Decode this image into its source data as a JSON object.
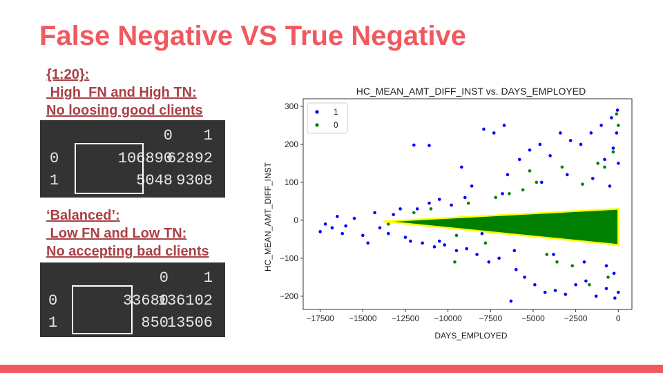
{
  "slide": {
    "title": "False Negative VS True Negative",
    "accent_color": "#f0595f",
    "note_color": "#a94045"
  },
  "matrix1": {
    "caption_lines": [
      "{1:20}:",
      " High  FN and High TN:",
      "No loosing good clients"
    ],
    "col_headers": [
      "0",
      "1"
    ],
    "rows": [
      {
        "label": "0",
        "values": [
          "106890",
          "62892"
        ]
      },
      {
        "label": "1",
        "values": [
          "5048",
          "9308"
        ]
      }
    ]
  },
  "matrix2": {
    "caption_lines": [
      "‘Balanced’:",
      " Low FN and Low TN:",
      "No accepting bad clients"
    ],
    "col_headers": [
      "0",
      "1"
    ],
    "rows": [
      {
        "label": "0",
        "values": [
          "33680",
          "136102"
        ]
      },
      {
        "label": "1",
        "values": [
          "850",
          "13506"
        ]
      }
    ]
  },
  "chart_data": {
    "type": "scatter",
    "title": "HC_MEAN_AMT_DIFF_INST vs. DAYS_EMPLOYED",
    "xlabel": "DAYS_EMPLOYED",
    "ylabel": "HC_MEAN_AMT_DIFF_INST",
    "xlim": [
      -18500,
      800
    ],
    "ylim": [
      -235,
      320
    ],
    "xticks": [
      -17500,
      -15000,
      -12500,
      -10000,
      -7500,
      -5000,
      -2500,
      0
    ],
    "yticks": [
      -200,
      -100,
      0,
      100,
      200,
      300
    ],
    "legend": {
      "position": "top-left",
      "entries": [
        "1",
        "0"
      ]
    },
    "series": [
      {
        "name": "1",
        "color": "#0000ff",
        "points": [
          [
            -17500,
            -30
          ],
          [
            -17200,
            -10
          ],
          [
            -16800,
            -20
          ],
          [
            -16500,
            10
          ],
          [
            -16200,
            -35
          ],
          [
            -16000,
            -15
          ],
          [
            -15500,
            5
          ],
          [
            -15000,
            -40
          ],
          [
            -14700,
            -60
          ],
          [
            -14300,
            20
          ],
          [
            -14000,
            -20
          ],
          [
            -13500,
            -35
          ],
          [
            -13200,
            15
          ],
          [
            -12800,
            30
          ],
          [
            -12500,
            -45
          ],
          [
            -12200,
            -55
          ],
          [
            -11800,
            30
          ],
          [
            -11500,
            -60
          ],
          [
            -11100,
            45
          ],
          [
            -10800,
            -70
          ],
          [
            -10500,
            55
          ],
          [
            -10200,
            -65
          ],
          [
            -9800,
            40
          ],
          [
            -9500,
            -80
          ],
          [
            -9200,
            140
          ],
          [
            -8900,
            -75
          ],
          [
            -8600,
            90
          ],
          [
            -8300,
            -90
          ],
          [
            -7900,
            240
          ],
          [
            -7600,
            -110
          ],
          [
            -7300,
            230
          ],
          [
            -7000,
            -100
          ],
          [
            -6700,
            250
          ],
          [
            -6500,
            120
          ],
          [
            -6300,
            -213
          ],
          [
            -6000,
            -130
          ],
          [
            -5800,
            160
          ],
          [
            -5500,
            -150
          ],
          [
            -5200,
            185
          ],
          [
            -4900,
            -170
          ],
          [
            -4600,
            200
          ],
          [
            -4300,
            -190
          ],
          [
            -4000,
            170
          ],
          [
            -3700,
            -185
          ],
          [
            -3400,
            230
          ],
          [
            -3100,
            -195
          ],
          [
            -2800,
            210
          ],
          [
            -2500,
            -170
          ],
          [
            -2200,
            200
          ],
          [
            -1900,
            -160
          ],
          [
            -1600,
            230
          ],
          [
            -1300,
            -200
          ],
          [
            -1000,
            250
          ],
          [
            -700,
            -180
          ],
          [
            -400,
            270
          ],
          [
            -200,
            -205
          ],
          [
            -50,
            290
          ],
          [
            0,
            -190
          ],
          [
            -12000,
            198
          ],
          [
            -11100,
            197
          ],
          [
            -8000,
            -35
          ],
          [
            -6800,
            70
          ],
          [
            -9000,
            60
          ],
          [
            -4500,
            100
          ],
          [
            -3000,
            120
          ],
          [
            -1500,
            110
          ],
          [
            -500,
            90
          ],
          [
            -800,
            160
          ],
          [
            -300,
            190
          ],
          [
            -100,
            230
          ],
          [
            0,
            150
          ],
          [
            -10500,
            -55
          ],
          [
            -6100,
            -80
          ],
          [
            -3800,
            -90
          ],
          [
            -2000,
            -110
          ],
          [
            -700,
            -120
          ],
          [
            -250,
            -140
          ]
        ]
      },
      {
        "name": "0",
        "color": "#008000",
        "points": [
          [
            -13500,
            -10
          ],
          [
            -12000,
            20
          ],
          [
            -11000,
            30
          ],
          [
            -9500,
            -40
          ],
          [
            -8800,
            45
          ],
          [
            -7200,
            60
          ],
          [
            -6400,
            70
          ],
          [
            -5600,
            80
          ],
          [
            -4800,
            100
          ],
          [
            -4200,
            -90
          ],
          [
            -3600,
            -110
          ],
          [
            -2700,
            -120
          ],
          [
            -2100,
            95
          ],
          [
            -1200,
            150
          ],
          [
            -800,
            140
          ],
          [
            -300,
            180
          ],
          [
            -100,
            280
          ],
          [
            0,
            250
          ],
          [
            -9600,
            -110
          ],
          [
            -7800,
            -60
          ],
          [
            -5200,
            130
          ],
          [
            -3300,
            140
          ],
          [
            -1700,
            -170
          ],
          [
            -600,
            -150
          ]
        ]
      }
    ],
    "annotation_outline_color": "#ffff00",
    "band": {
      "color": "#008000",
      "left_x": -13800,
      "right_x": 0,
      "left_y": -3,
      "right_top": 30,
      "right_bottom": -65
    }
  }
}
